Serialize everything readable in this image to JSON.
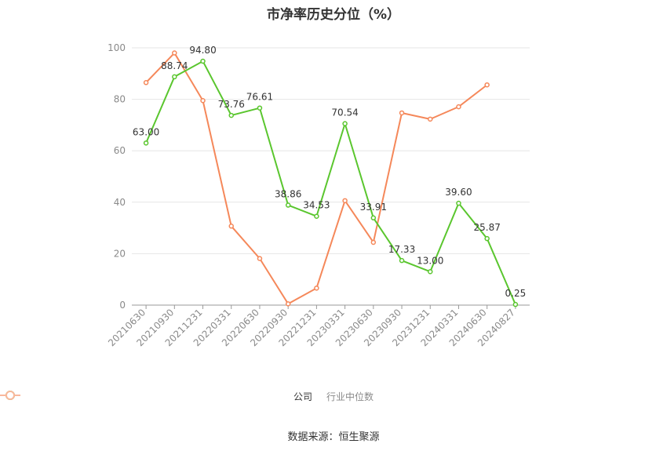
{
  "chart_data": {
    "type": "line",
    "title": "市净率历史分位（%）",
    "categories": [
      "20210630",
      "20210930",
      "20211231",
      "20220331",
      "20220630",
      "20220930",
      "20221231",
      "20230331",
      "20230630",
      "20230930",
      "20231231",
      "20240331",
      "20240630",
      "20240827"
    ],
    "series": [
      {
        "name": "公司",
        "color": "#5ac62e",
        "values": [
          63.0,
          88.74,
          94.8,
          73.76,
          76.61,
          38.86,
          34.53,
          70.54,
          33.91,
          17.33,
          13.0,
          39.6,
          25.87,
          0.25
        ],
        "labels": [
          "63.00",
          "88.74",
          "94.80",
          "73.76",
          "76.61",
          "38.86",
          "34.53",
          "70.54",
          "33.91",
          "17.33",
          "13.00",
          "39.60",
          "25.87",
          "0.25"
        ]
      },
      {
        "name": "行业中位数",
        "color": "#f5885a",
        "values": [
          86.5,
          98.0,
          79.5,
          30.7,
          18.1,
          0.5,
          6.6,
          40.6,
          24.4,
          74.7,
          72.3,
          77.1,
          85.6,
          null
        ]
      }
    ],
    "yticks": [
      0,
      20,
      40,
      60,
      80,
      100
    ],
    "ylim": [
      0,
      100
    ],
    "grid": true,
    "legend_position": "bottom"
  },
  "source": "数据来源：恒生聚源"
}
